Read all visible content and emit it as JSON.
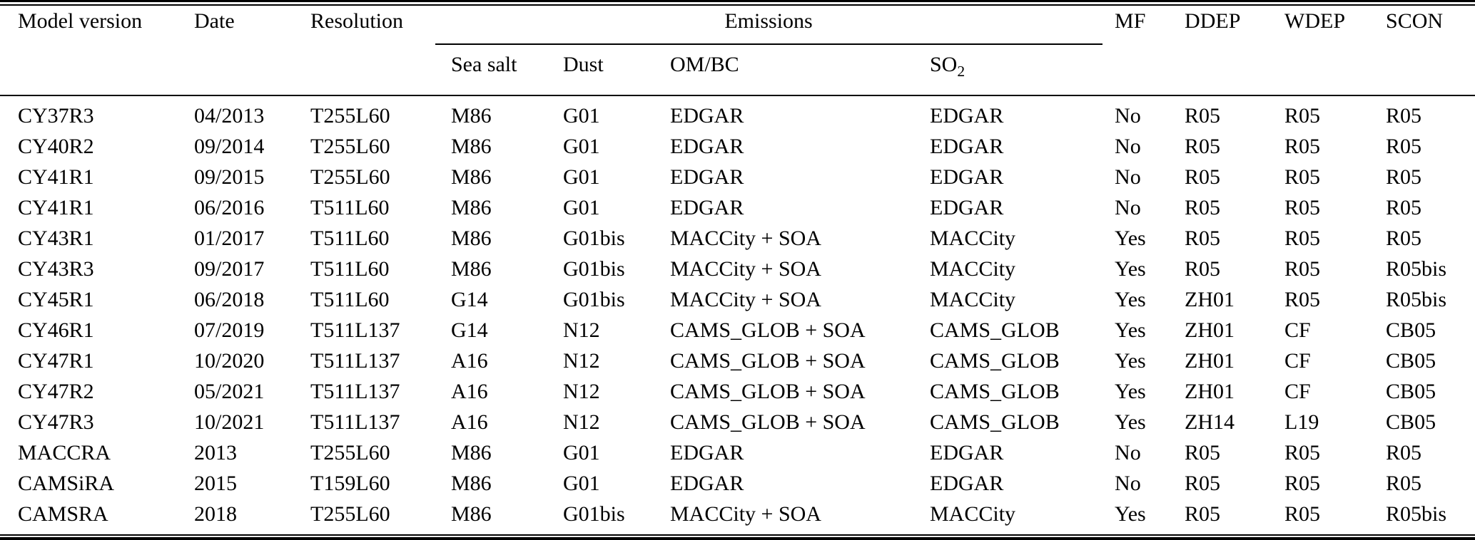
{
  "table": {
    "header": {
      "col_model": "Model version",
      "col_date": "Date",
      "col_resolution": "Resolution",
      "emissions_group": "Emissions",
      "sub_sea_salt": "Sea salt",
      "sub_dust": "Dust",
      "sub_ombc": "OM/BC",
      "sub_so2_base": "SO",
      "sub_so2_sub": "2",
      "col_mf": "MF",
      "col_ddep": "DDEP",
      "col_wdep": "WDEP",
      "col_scon": "SCON"
    },
    "rows": [
      [
        "CY37R3",
        "04/2013",
        "T255L60",
        "M86",
        "G01",
        "EDGAR",
        "EDGAR",
        "No",
        "R05",
        "R05",
        "R05"
      ],
      [
        "CY40R2",
        "09/2014",
        "T255L60",
        "M86",
        "G01",
        "EDGAR",
        "EDGAR",
        "No",
        "R05",
        "R05",
        "R05"
      ],
      [
        "CY41R1",
        "09/2015",
        "T255L60",
        "M86",
        "G01",
        "EDGAR",
        "EDGAR",
        "No",
        "R05",
        "R05",
        "R05"
      ],
      [
        "CY41R1",
        "06/2016",
        "T511L60",
        "M86",
        "G01",
        "EDGAR",
        "EDGAR",
        "No",
        "R05",
        "R05",
        "R05"
      ],
      [
        "CY43R1",
        "01/2017",
        "T511L60",
        "M86",
        "G01bis",
        "MACCity + SOA",
        "MACCity",
        "Yes",
        "R05",
        "R05",
        "R05"
      ],
      [
        "CY43R3",
        "09/2017",
        "T511L60",
        "M86",
        "G01bis",
        "MACCity + SOA",
        "MACCity",
        "Yes",
        "R05",
        "R05",
        "R05bis"
      ],
      [
        "CY45R1",
        "06/2018",
        "T511L60",
        "G14",
        "G01bis",
        "MACCity + SOA",
        "MACCity",
        "Yes",
        "ZH01",
        "R05",
        "R05bis"
      ],
      [
        "CY46R1",
        "07/2019",
        "T511L137",
        "G14",
        "N12",
        "CAMS_GLOB + SOA",
        "CAMS_GLOB",
        "Yes",
        "ZH01",
        "CF",
        "CB05"
      ],
      [
        "CY47R1",
        "10/2020",
        "T511L137",
        "A16",
        "N12",
        "CAMS_GLOB + SOA",
        "CAMS_GLOB",
        "Yes",
        "ZH01",
        "CF",
        "CB05"
      ],
      [
        "CY47R2",
        "05/2021",
        "T511L137",
        "A16",
        "N12",
        "CAMS_GLOB + SOA",
        "CAMS_GLOB",
        "Yes",
        "ZH01",
        "CF",
        "CB05"
      ],
      [
        "CY47R3",
        "10/2021",
        "T511L137",
        "A16",
        "N12",
        "CAMS_GLOB + SOA",
        "CAMS_GLOB",
        "Yes",
        "ZH14",
        "L19",
        "CB05"
      ],
      [
        "MACCRA",
        "2013",
        "T255L60",
        "M86",
        "G01",
        "EDGAR",
        "EDGAR",
        "No",
        "R05",
        "R05",
        "R05"
      ],
      [
        "CAMSiRA",
        "2015",
        "T159L60",
        "M86",
        "G01",
        "EDGAR",
        "EDGAR",
        "No",
        "R05",
        "R05",
        "R05"
      ],
      [
        "CAMSRA",
        "2018",
        "T255L60",
        "M86",
        "G01bis",
        "MACCity + SOA",
        "MACCity",
        "Yes",
        "R05",
        "R05",
        "R05bis"
      ]
    ]
  }
}
